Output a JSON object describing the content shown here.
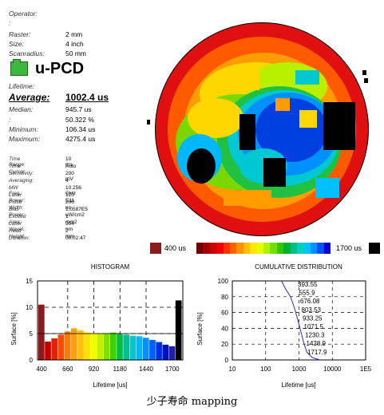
{
  "params": {
    "operator_label": "Operator:",
    "blank_label": ":",
    "raster": {
      "label": "Raster:",
      "value": "2 mm"
    },
    "size": {
      "label": "Size:",
      "value": "4 inch"
    },
    "scanradius": {
      "label": "Scanradius:",
      "value": "50 mm"
    },
    "product": "u-PCD",
    "lifetime_label": "Lifetime:",
    "average": {
      "label": "Average:",
      "value": "1002.4 us"
    },
    "median": {
      "label": "Median:",
      "value": "945.7 us"
    },
    "colon_row": {
      "label": ":",
      "value": "50.322 %"
    },
    "minimum": {
      "label": "Minimum:",
      "value": "106.34 us"
    },
    "maximum": {
      "label": "Maximum:",
      "value": "4275.4 us"
    }
  },
  "settings": [
    {
      "label": "Time Range:",
      "value": "10 ms"
    },
    {
      "label": "Time Cursor:",
      "value": "Auto"
    },
    {
      "label": "Sensitivity:",
      "value": "200 mV"
    },
    {
      "label": "Averaging:",
      "value": "4"
    },
    {
      "label": "MW Freq.:",
      "value": "10.256 GHz"
    },
    {
      "label": "Laser Power:",
      "value": "120 E11"
    },
    {
      "label": "Pulse Width:",
      "value": "200 ns"
    },
    {
      "label": "Bias Power:",
      "value": "1.0587E5 uW/cm2"
    },
    {
      "label": "Excited Area:",
      "value": "1 mm2"
    },
    {
      "label": "Laser Wavel.:",
      "value": "904 nm"
    },
    {
      "label": "Head Height:",
      "value": "2 mm"
    },
    {
      "label": "Duration:",
      "value": "00:02:47"
    }
  ],
  "colorbar": {
    "min_label": "400 us",
    "max_label": "1700 us",
    "low_color": "#8b1a1a",
    "high_color": "#000000",
    "colors": [
      "#6e0000",
      "#a00000",
      "#d00000",
      "#f00000",
      "#ff3000",
      "#ff6000",
      "#ff9000",
      "#ffc000",
      "#ffe800",
      "#e8ff00",
      "#b0f000",
      "#70e000",
      "#30c800",
      "#00b030",
      "#00c080",
      "#00d0c0",
      "#00c0ff",
      "#0090ff",
      "#0050ff",
      "#0000d0"
    ]
  },
  "histogram": {
    "title": "HISTOGRAM",
    "ylabel": "Surface [%]",
    "xlabel": "Lifetime [us]",
    "yticks": [
      "15",
      "10",
      "5",
      "0"
    ],
    "xticks": [
      "400",
      "660",
      "920",
      "1180",
      "1440",
      "1700"
    ]
  },
  "cumulative": {
    "title": "CUMULATIVE DISTRIBUTION",
    "ylabel": "Surface [%]",
    "xlabel": "Lifetime [us]",
    "yticks": [
      "100",
      "80",
      "60",
      "40",
      "20",
      "0"
    ],
    "xticks": [
      "10",
      "100",
      "1000",
      "10000",
      "1E5"
    ],
    "annotations": [
      "393.55",
      "555.9",
      "676.08",
      "803.53",
      "933.25",
      "1071.5",
      "1230.3",
      "1428.9",
      "1717.9"
    ]
  },
  "caption": "少子寿命 mapping",
  "chart_data": [
    {
      "type": "bar",
      "title": "HISTOGRAM",
      "xlabel": "Lifetime [us]",
      "ylabel": "Surface [%]",
      "ylim": [
        0,
        15
      ],
      "categories": [
        "<400",
        "400",
        "465",
        "530",
        "595",
        "660",
        "725",
        "790",
        "855",
        "920",
        "985",
        "1050",
        "1115",
        "1180",
        "1245",
        "1310",
        "1375",
        "1440",
        "1505",
        "1570",
        "1635",
        ">1700"
      ],
      "values": [
        10.5,
        3.5,
        4.1,
        4.8,
        5.4,
        6.0,
        5.6,
        5.2,
        5.1,
        5.0,
        5.1,
        5.2,
        4.9,
        4.8,
        4.6,
        4.5,
        4.2,
        3.8,
        3.4,
        2.9,
        2.6,
        11.3
      ],
      "colors": [
        "#8b1a1a",
        "#c80000",
        "#e82000",
        "#ff4a00",
        "#ff7a00",
        "#ffa000",
        "#ffc000",
        "#ffe000",
        "#f0ff00",
        "#c0f000",
        "#80e000",
        "#40d000",
        "#00c040",
        "#00c090",
        "#00c8d0",
        "#00b8ff",
        "#0090ff",
        "#0060ff",
        "#0030e0",
        "#0010c0",
        "#2020a0",
        "#000000"
      ],
      "grid": true
    },
    {
      "type": "line",
      "title": "CUMULATIVE DISTRIBUTION",
      "xlabel": "Lifetime [us]",
      "ylabel": "Surface [%]",
      "xscale": "log",
      "xlim": [
        10,
        100000
      ],
      "ylim": [
        0,
        100
      ],
      "x": [
        300,
        393.55,
        555.9,
        676.08,
        803.53,
        933.25,
        1071.5,
        1230.3,
        1428.9,
        1717.9,
        2500,
        4300
      ],
      "y": [
        100,
        90,
        80,
        70,
        60,
        50,
        40,
        30,
        20,
        10,
        3,
        0
      ],
      "grid": true
    }
  ]
}
